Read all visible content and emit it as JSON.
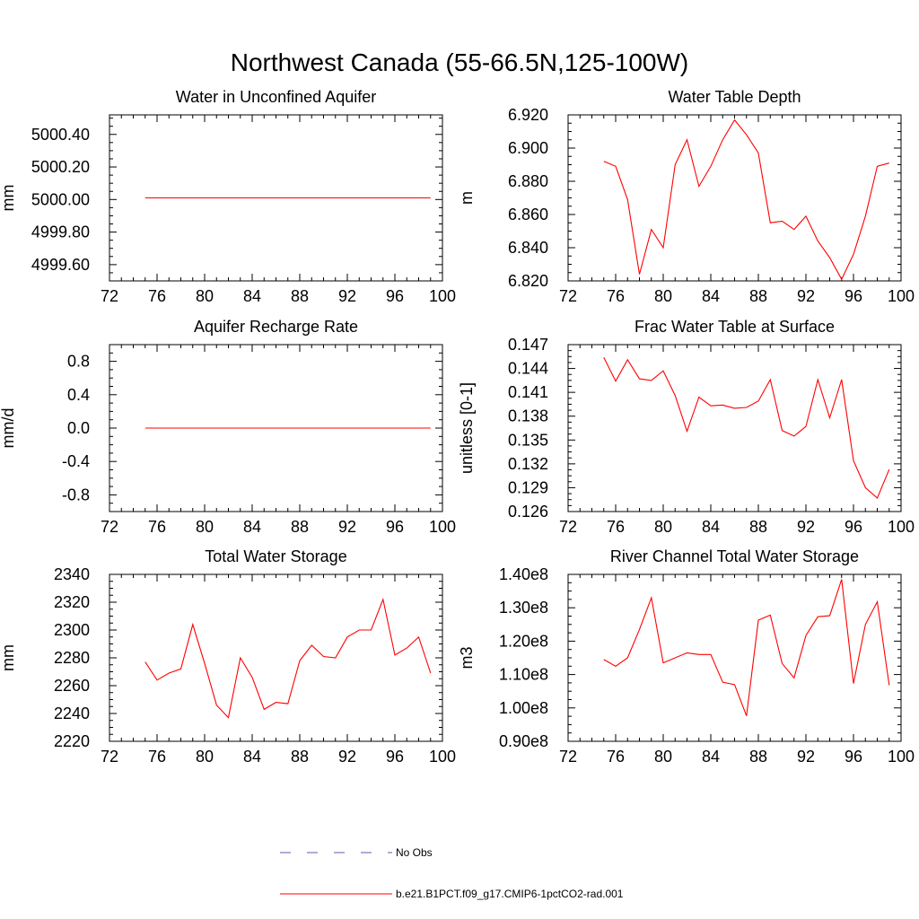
{
  "figure": {
    "title": "Northwest Canada (55-66.5N,125-100W)"
  },
  "legend": [
    {
      "label": "No Obs",
      "color": "#5a5ab4",
      "dash": "dash"
    },
    {
      "label": "b.e21.B1PCT.f09_g17.CMIP6-1pctCO2-rad.001",
      "color": "#ff0000",
      "dash": "solid"
    }
  ],
  "chart_data": [
    {
      "type": "line",
      "title": "Water in Unconfined Aquifer",
      "ylabel": "mm",
      "xlim": [
        72,
        100
      ],
      "ylim": [
        4999.5,
        5000.52
      ],
      "xticks": [
        72,
        76,
        80,
        84,
        88,
        92,
        96,
        100
      ],
      "xticklabels": [
        "72",
        "76",
        "80",
        "84",
        "88",
        "92",
        "96",
        "100"
      ],
      "yticks": [
        4999.6,
        4999.8,
        5000.0,
        5000.2,
        5000.4
      ],
      "yticklabels": [
        "4999.60",
        "4999.80",
        "5000.00",
        "5000.20",
        "5000.40"
      ],
      "series": [
        {
          "color": "#ff0000",
          "x": [
            75,
            99
          ],
          "y": [
            5000.01,
            5000.01
          ]
        }
      ]
    },
    {
      "type": "line",
      "title": "Water Table Depth",
      "ylabel": "m",
      "xlim": [
        72,
        100
      ],
      "ylim": [
        6.82,
        6.92
      ],
      "xticks": [
        72,
        76,
        80,
        84,
        88,
        92,
        96,
        100
      ],
      "xticklabels": [
        "72",
        "76",
        "80",
        "84",
        "88",
        "92",
        "96",
        "100"
      ],
      "yticks": [
        6.82,
        6.84,
        6.86,
        6.88,
        6.9,
        6.92
      ],
      "yticklabels": [
        "6.820",
        "6.840",
        "6.860",
        "6.880",
        "6.900",
        "6.920"
      ],
      "series": [
        {
          "color": "#ff0000",
          "x": [
            75,
            76,
            77,
            78,
            79,
            80,
            81,
            82,
            83,
            84,
            85,
            86,
            87,
            88,
            89,
            90,
            91,
            92,
            93,
            94,
            95,
            96,
            97,
            98,
            99
          ],
          "y": [
            6.892,
            6.889,
            6.869,
            6.824,
            6.851,
            6.84,
            6.89,
            6.905,
            6.877,
            6.889,
            6.905,
            6.917,
            6.908,
            6.897,
            6.855,
            6.856,
            6.851,
            6.859,
            6.844,
            6.834,
            6.821,
            6.836,
            6.859,
            6.889,
            6.891
          ]
        }
      ]
    },
    {
      "type": "line",
      "title": "Aquifer Recharge Rate",
      "ylabel": "mm/d",
      "xlim": [
        72,
        100
      ],
      "ylim": [
        -1.0,
        1.0
      ],
      "xticks": [
        72,
        76,
        80,
        84,
        88,
        92,
        96,
        100
      ],
      "xticklabels": [
        "72",
        "76",
        "80",
        "84",
        "88",
        "92",
        "96",
        "100"
      ],
      "yticks": [
        -0.8,
        -0.4,
        0.0,
        0.4,
        0.8
      ],
      "yticklabels": [
        "-0.8",
        "-0.4",
        "0.0",
        "0.4",
        "0.8"
      ],
      "series": [
        {
          "color": "#ff0000",
          "x": [
            75,
            99
          ],
          "y": [
            0.0,
            0.0
          ]
        }
      ]
    },
    {
      "type": "line",
      "title": "Frac Water Table at Surface",
      "ylabel": "unitless [0-1]",
      "xlim": [
        72,
        100
      ],
      "ylim": [
        0.126,
        0.147
      ],
      "xticks": [
        72,
        76,
        80,
        84,
        88,
        92,
        96,
        100
      ],
      "xticklabels": [
        "72",
        "76",
        "80",
        "84",
        "88",
        "92",
        "96",
        "100"
      ],
      "yticks": [
        0.126,
        0.129,
        0.132,
        0.135,
        0.138,
        0.141,
        0.144,
        0.147
      ],
      "yticklabels": [
        "0.126",
        "0.129",
        "0.132",
        "0.135",
        "0.138",
        "0.141",
        "0.144",
        "0.147"
      ],
      "series": [
        {
          "color": "#ff0000",
          "x": [
            75,
            76,
            77,
            78,
            79,
            80,
            81,
            82,
            83,
            84,
            85,
            86,
            87,
            88,
            89,
            90,
            91,
            92,
            93,
            94,
            95,
            96,
            97,
            98,
            99
          ],
          "y": [
            0.1454,
            0.1424,
            0.1451,
            0.1427,
            0.1425,
            0.1437,
            0.1406,
            0.1361,
            0.1404,
            0.1393,
            0.1394,
            0.139,
            0.1391,
            0.1399,
            0.1426,
            0.1362,
            0.1355,
            0.1367,
            0.1426,
            0.1378,
            0.1426,
            0.1324,
            0.129,
            0.1277,
            0.1313
          ]
        }
      ]
    },
    {
      "type": "line",
      "title": "Total Water Storage",
      "ylabel": "mm",
      "xlim": [
        72,
        100
      ],
      "ylim": [
        2220,
        2340
      ],
      "xticks": [
        72,
        76,
        80,
        84,
        88,
        92,
        96,
        100
      ],
      "xticklabels": [
        "72",
        "76",
        "80",
        "84",
        "88",
        "92",
        "96",
        "100"
      ],
      "yticks": [
        2220,
        2240,
        2260,
        2280,
        2300,
        2320,
        2340
      ],
      "yticklabels": [
        "2220",
        "2240",
        "2260",
        "2280",
        "2300",
        "2320",
        "2340"
      ],
      "series": [
        {
          "color": "#ff0000",
          "x": [
            75,
            76,
            77,
            78,
            79,
            80,
            81,
            82,
            83,
            84,
            85,
            86,
            87,
            88,
            89,
            90,
            91,
            92,
            93,
            94,
            95,
            96,
            97,
            98,
            99
          ],
          "y": [
            2277,
            2264,
            2269,
            2272,
            2304,
            2276,
            2246,
            2237,
            2280,
            2266,
            2243,
            2248,
            2247,
            2278,
            2289,
            2281,
            2280,
            2295,
            2300,
            2300,
            2322,
            2282,
            2287,
            2295,
            2269
          ]
        }
      ]
    },
    {
      "type": "line",
      "title": "River Channel Total Water Storage",
      "ylabel": "m3",
      "xlim": [
        72,
        100
      ],
      "ylim": [
        90000000,
        140000000
      ],
      "xticks": [
        72,
        76,
        80,
        84,
        88,
        92,
        96,
        100
      ],
      "xticklabels": [
        "72",
        "76",
        "80",
        "84",
        "88",
        "92",
        "96",
        "100"
      ],
      "yticks": [
        90000000,
        100000000,
        110000000,
        120000000,
        130000000,
        140000000
      ],
      "yticklabels": [
        "0.90e8",
        "1.00e8",
        "1.10e8",
        "1.20e8",
        "1.30e8",
        "1.40e8"
      ],
      "series": [
        {
          "color": "#ff0000",
          "x": [
            75,
            76,
            77,
            78,
            79,
            80,
            81,
            82,
            83,
            84,
            85,
            86,
            87,
            88,
            89,
            90,
            91,
            92,
            93,
            94,
            95,
            96,
            97,
            98,
            99
          ],
          "y": [
            114500000,
            112500000,
            115000000,
            123500000,
            133000000,
            113500000,
            115000000,
            116500000,
            116000000,
            116000000,
            107700000,
            107000000,
            97600000,
            126300000,
            127800000,
            113300000,
            109000000,
            121700000,
            127300000,
            127600000,
            138500000,
            107300000,
            125000000,
            131800000,
            106800000
          ]
        }
      ]
    }
  ]
}
